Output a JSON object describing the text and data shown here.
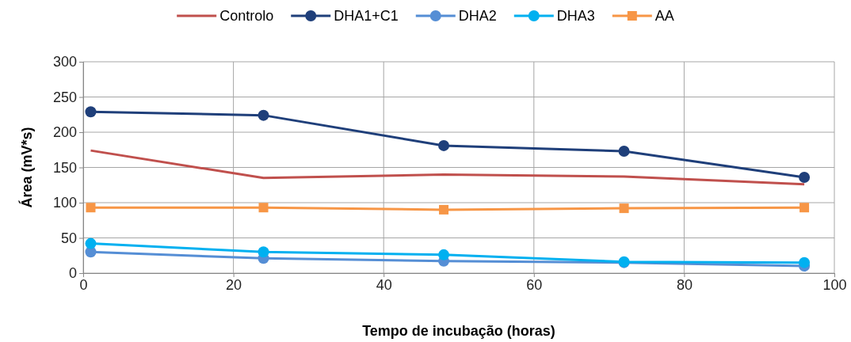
{
  "chart_data": {
    "type": "line",
    "xlabel": "Tempo de incubação (horas)",
    "ylabel": "Área (mV*s)",
    "xlim": [
      0,
      100
    ],
    "xticks": [
      0,
      20,
      40,
      60,
      80,
      100
    ],
    "ylim": [
      0,
      300
    ],
    "yticks": [
      0,
      50,
      100,
      150,
      200,
      250,
      300
    ],
    "grid": true,
    "legend": "top",
    "marker": "circle",
    "line_style": "solid",
    "series": [
      {
        "name": "Controlo",
        "color": "#c0504d",
        "marker": "none",
        "x": [
          1,
          24,
          48,
          72,
          96
        ],
        "values": [
          174,
          135,
          140,
          137,
          126
        ]
      },
      {
        "name": "DHA1+C1",
        "color": "#1f3f7a",
        "x": [
          1,
          24,
          48,
          72,
          96
        ],
        "values": [
          229,
          224,
          181,
          173,
          136
        ]
      },
      {
        "name": "DHA2",
        "color": "#558ed5",
        "x": [
          1,
          24,
          48,
          72,
          96
        ],
        "values": [
          30,
          21,
          17,
          15,
          10
        ]
      },
      {
        "name": "DHA3",
        "color": "#00b0f0",
        "x": [
          1,
          24,
          48,
          72,
          96
        ],
        "values": [
          42,
          30,
          26,
          16,
          15
        ]
      },
      {
        "name": "AA",
        "color": "#f79646",
        "marker": "square",
        "x": [
          1,
          24,
          48,
          72,
          96
        ],
        "values": [
          93,
          93,
          90,
          92,
          93
        ]
      }
    ]
  }
}
